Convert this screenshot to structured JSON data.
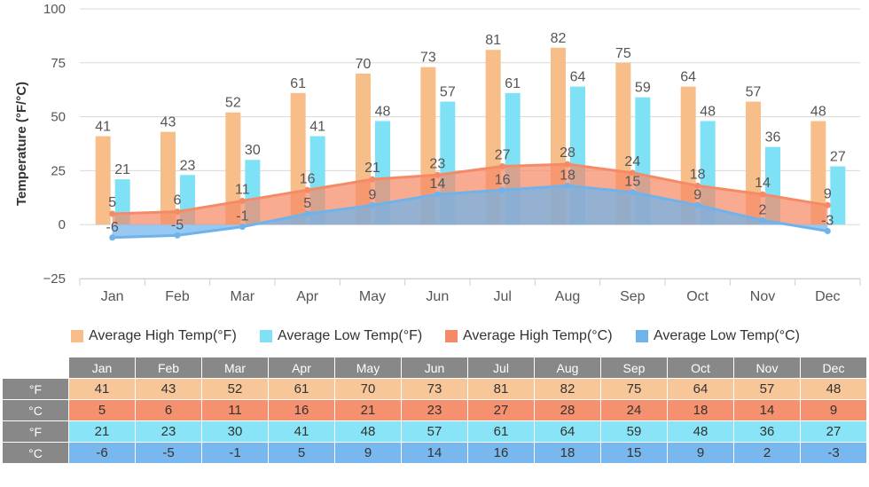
{
  "chart_data": {
    "type": "bar",
    "categories": [
      "Jan",
      "Feb",
      "Mar",
      "Apr",
      "May",
      "Jun",
      "Jul",
      "Aug",
      "Sep",
      "Oct",
      "Nov",
      "Dec"
    ],
    "ylabel": "Temperature (°F/°C)",
    "ylim": [
      -25,
      100
    ],
    "yticks": [
      -25,
      0,
      25,
      50,
      75,
      100
    ],
    "yticks_text": [
      "−25",
      "0",
      "25",
      "50",
      "75",
      "100"
    ],
    "grid": true,
    "legend_position": "bottom",
    "series": [
      {
        "name": "Average High Temp(°F)",
        "kind": "bar",
        "color": "#F7BE8A",
        "values": [
          41,
          43,
          52,
          61,
          70,
          73,
          81,
          82,
          75,
          64,
          57,
          48
        ],
        "labels": [
          "41",
          "43",
          "52",
          "61",
          "70",
          "73",
          "81",
          "82",
          "75",
          "64",
          "57",
          "48"
        ]
      },
      {
        "name": "Average Low Temp(°F)",
        "kind": "bar",
        "color": "#7FE1F6",
        "values": [
          21,
          23,
          30,
          41,
          48,
          57,
          61,
          64,
          59,
          48,
          36,
          27
        ],
        "labels": [
          "21",
          "23",
          "30",
          "41",
          "48",
          "57",
          "61",
          "64",
          "59",
          "48",
          "36",
          "27"
        ]
      },
      {
        "name": "Average High Temp(°C)",
        "kind": "area",
        "color": "#F58B66",
        "values": [
          5,
          6,
          11,
          16,
          21,
          23,
          27,
          28,
          24,
          18,
          14,
          9
        ],
        "labels": [
          "5",
          "6",
          "11",
          "16",
          "21",
          "23",
          "27",
          "28",
          "24",
          "18",
          "14",
          "9"
        ]
      },
      {
        "name": "Average Low Temp(°C)",
        "kind": "area",
        "color": "#6FB3EC",
        "values": [
          -6,
          -5,
          -1,
          5,
          9,
          14,
          16,
          18,
          15,
          9,
          2,
          -3
        ],
        "labels": [
          "-6",
          "-5",
          "-1",
          "5",
          "9",
          "14",
          "16",
          "18",
          "15",
          "9",
          "2",
          "-3"
        ]
      }
    ]
  },
  "table": {
    "months": [
      "Jan",
      "Feb",
      "Mar",
      "Apr",
      "May",
      "Jun",
      "Jul",
      "Aug",
      "Sep",
      "Oct",
      "Nov",
      "Dec"
    ],
    "rows": [
      {
        "unit": "°F",
        "color": "#F7C699",
        "values": [
          "41",
          "43",
          "52",
          "61",
          "70",
          "73",
          "81",
          "82",
          "75",
          "64",
          "57",
          "48"
        ]
      },
      {
        "unit": "°C",
        "color": "#F5916E",
        "values": [
          "5",
          "6",
          "11",
          "16",
          "21",
          "23",
          "27",
          "28",
          "24",
          "18",
          "14",
          "9"
        ]
      },
      {
        "unit": "°F",
        "color": "#88E4F6",
        "values": [
          "21",
          "23",
          "30",
          "41",
          "48",
          "57",
          "61",
          "64",
          "59",
          "48",
          "36",
          "27"
        ]
      },
      {
        "unit": "°C",
        "color": "#78B8EE",
        "values": [
          "-6",
          "-5",
          "-1",
          "5",
          "9",
          "14",
          "16",
          "18",
          "15",
          "9",
          "2",
          "-3"
        ]
      }
    ]
  }
}
